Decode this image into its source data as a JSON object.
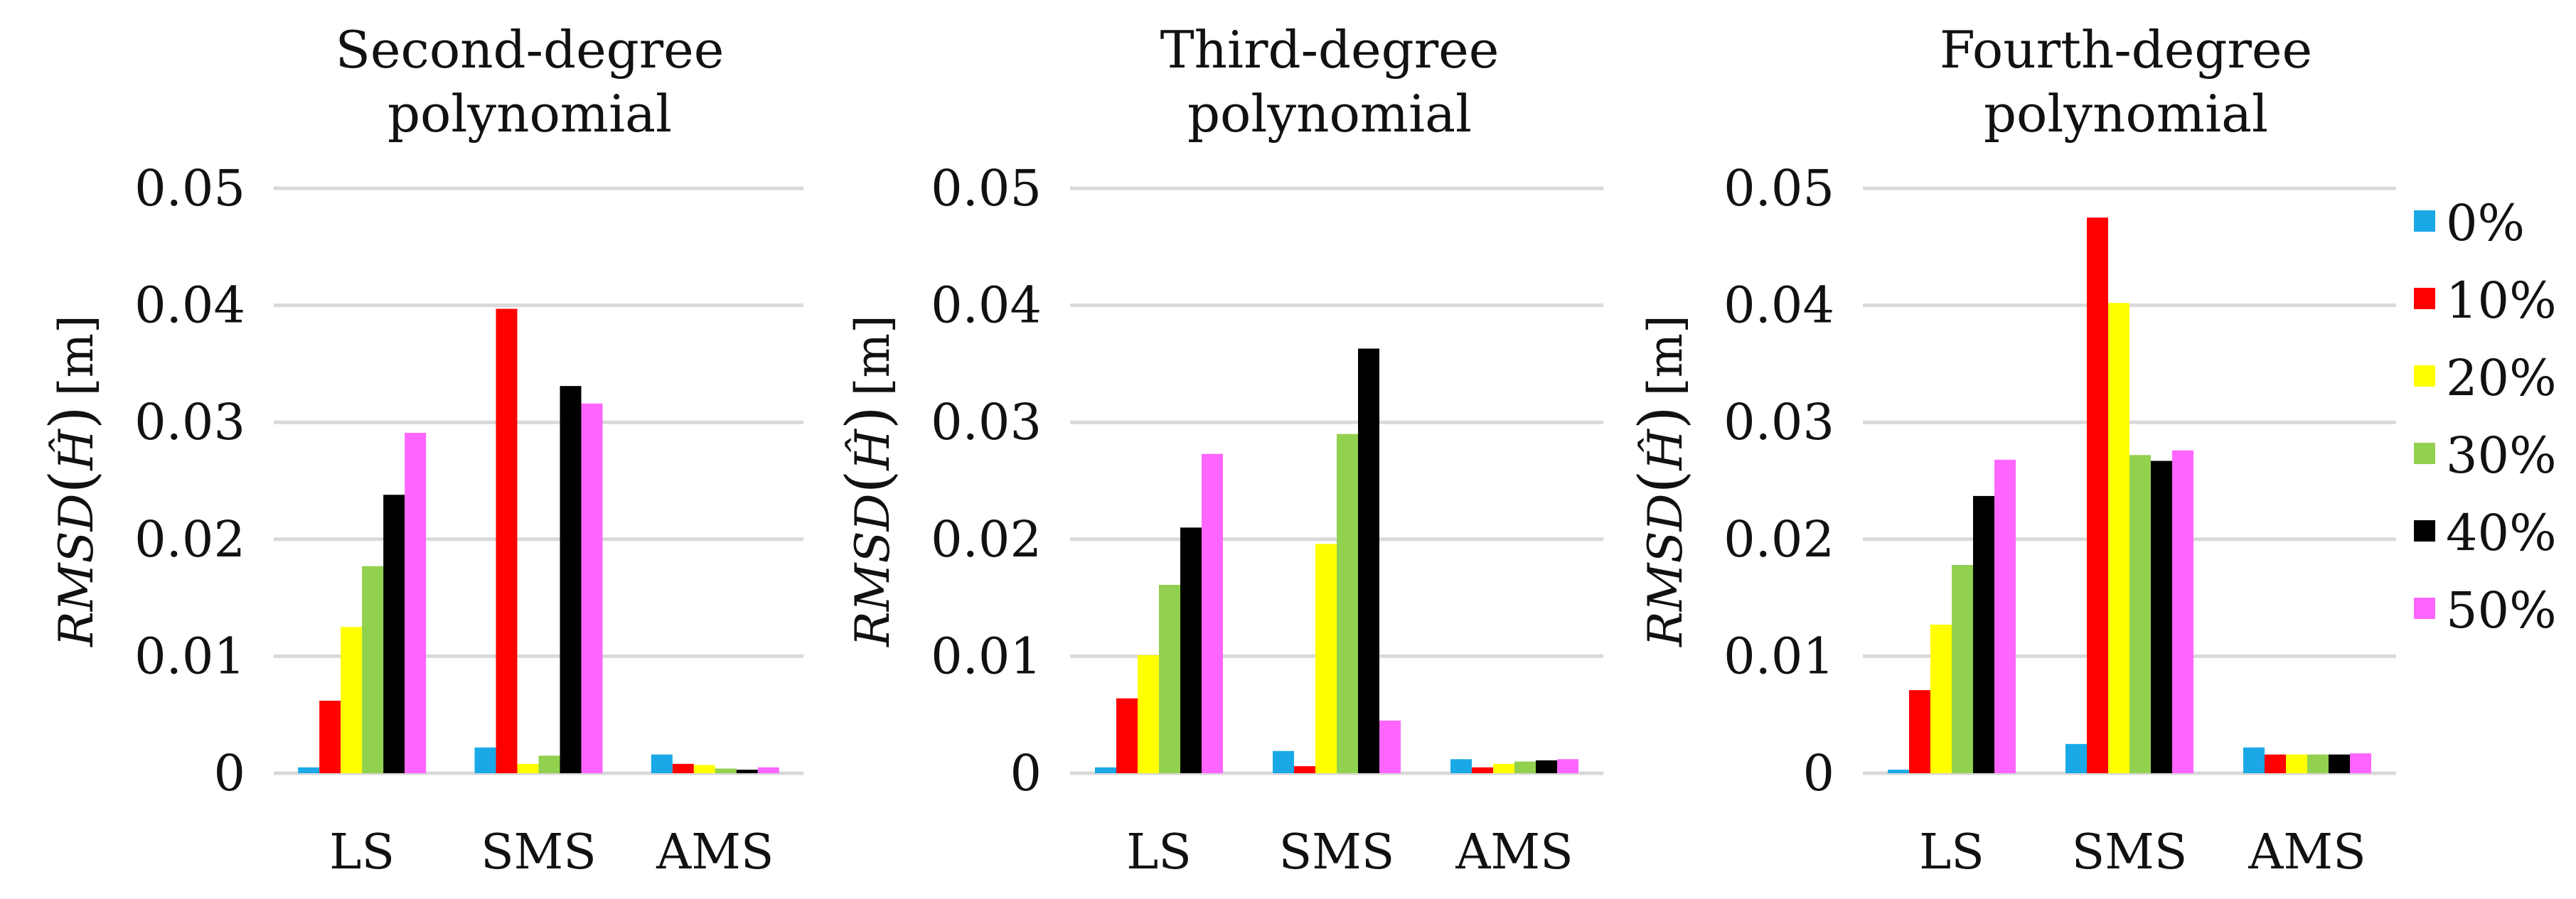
{
  "chart_data": [
    {
      "type": "bar",
      "title": "Second-degree polynomial",
      "title_lines": [
        "Second-degree",
        "polynomial"
      ],
      "ylabel": "RMSD(Ĥ) [m]",
      "ylabel_parts": {
        "main": "RMSD",
        "inner": "Ĥ",
        "unit": "[m]"
      },
      "ylim": [
        0,
        0.05
      ],
      "yticks": [
        "0",
        "0.01",
        "0.02",
        "0.03",
        "0.04",
        "0.05"
      ],
      "grid": true,
      "categories": [
        "LS",
        "SMS",
        "AMS"
      ],
      "series": [
        {
          "name": "0%",
          "values": [
            0.0005,
            0.0022,
            0.0016
          ]
        },
        {
          "name": "10%",
          "values": [
            0.0062,
            0.0397,
            0.0008
          ]
        },
        {
          "name": "20%",
          "values": [
            0.0125,
            0.0008,
            0.0007
          ]
        },
        {
          "name": "30%",
          "values": [
            0.0177,
            0.0015,
            0.0004
          ]
        },
        {
          "name": "40%",
          "values": [
            0.0238,
            0.0331,
            0.0003
          ]
        },
        {
          "name": "50%",
          "values": [
            0.0291,
            0.0316,
            0.0005
          ]
        }
      ]
    },
    {
      "type": "bar",
      "title": "Third-degree polynomial",
      "title_lines": [
        "Third-degree",
        "polynomial"
      ],
      "ylabel": "RMSD(Ĥ) [m]",
      "ylabel_parts": {
        "main": "RMSD",
        "inner": "Ĥ",
        "unit": "[m]"
      },
      "ylim": [
        0,
        0.05
      ],
      "yticks": [
        "0",
        "0.01",
        "0.02",
        "0.03",
        "0.04",
        "0.05"
      ],
      "grid": true,
      "categories": [
        "LS",
        "SMS",
        "AMS"
      ],
      "series": [
        {
          "name": "0%",
          "values": [
            0.0005,
            0.0019,
            0.0012
          ]
        },
        {
          "name": "10%",
          "values": [
            0.0064,
            0.0006,
            0.0005
          ]
        },
        {
          "name": "20%",
          "values": [
            0.0101,
            0.0196,
            0.0008
          ]
        },
        {
          "name": "30%",
          "values": [
            0.0161,
            0.029,
            0.001
          ]
        },
        {
          "name": "40%",
          "values": [
            0.021,
            0.0363,
            0.0011
          ]
        },
        {
          "name": "50%",
          "values": [
            0.0273,
            0.0045,
            0.0012
          ]
        }
      ]
    },
    {
      "type": "bar",
      "title": "Fourth-degree polynomial",
      "title_lines": [
        "Fourth-degree",
        "polynomial"
      ],
      "ylabel": "RMSD(Ĥ) [m]",
      "ylabel_parts": {
        "main": "RMSD",
        "inner": "Ĥ",
        "unit": "[m]"
      },
      "ylim": [
        0,
        0.05
      ],
      "yticks": [
        "0",
        "0.01",
        "0.02",
        "0.03",
        "0.04",
        "0.05"
      ],
      "grid": true,
      "categories": [
        "LS",
        "SMS",
        "AMS"
      ],
      "series": [
        {
          "name": "0%",
          "values": [
            0.0003,
            0.0025,
            0.0022
          ]
        },
        {
          "name": "10%",
          "values": [
            0.0071,
            0.0475,
            0.0016
          ]
        },
        {
          "name": "20%",
          "values": [
            0.0127,
            0.0402,
            0.0016
          ]
        },
        {
          "name": "30%",
          "values": [
            0.0178,
            0.0272,
            0.0016
          ]
        },
        {
          "name": "40%",
          "values": [
            0.0237,
            0.0267,
            0.0016
          ]
        },
        {
          "name": "50%",
          "values": [
            0.0268,
            0.0276,
            0.0017
          ]
        }
      ]
    }
  ],
  "legend": {
    "placement": "right",
    "entries": [
      {
        "label": "0%",
        "color": "#1aa9e6"
      },
      {
        "label": "10%",
        "color": "#ff0000"
      },
      {
        "label": "20%",
        "color": "#ffff00"
      },
      {
        "label": "30%",
        "color": "#92d050"
      },
      {
        "label": "40%",
        "color": "#000000"
      },
      {
        "label": "50%",
        "color": "#ff66ff"
      }
    ]
  }
}
